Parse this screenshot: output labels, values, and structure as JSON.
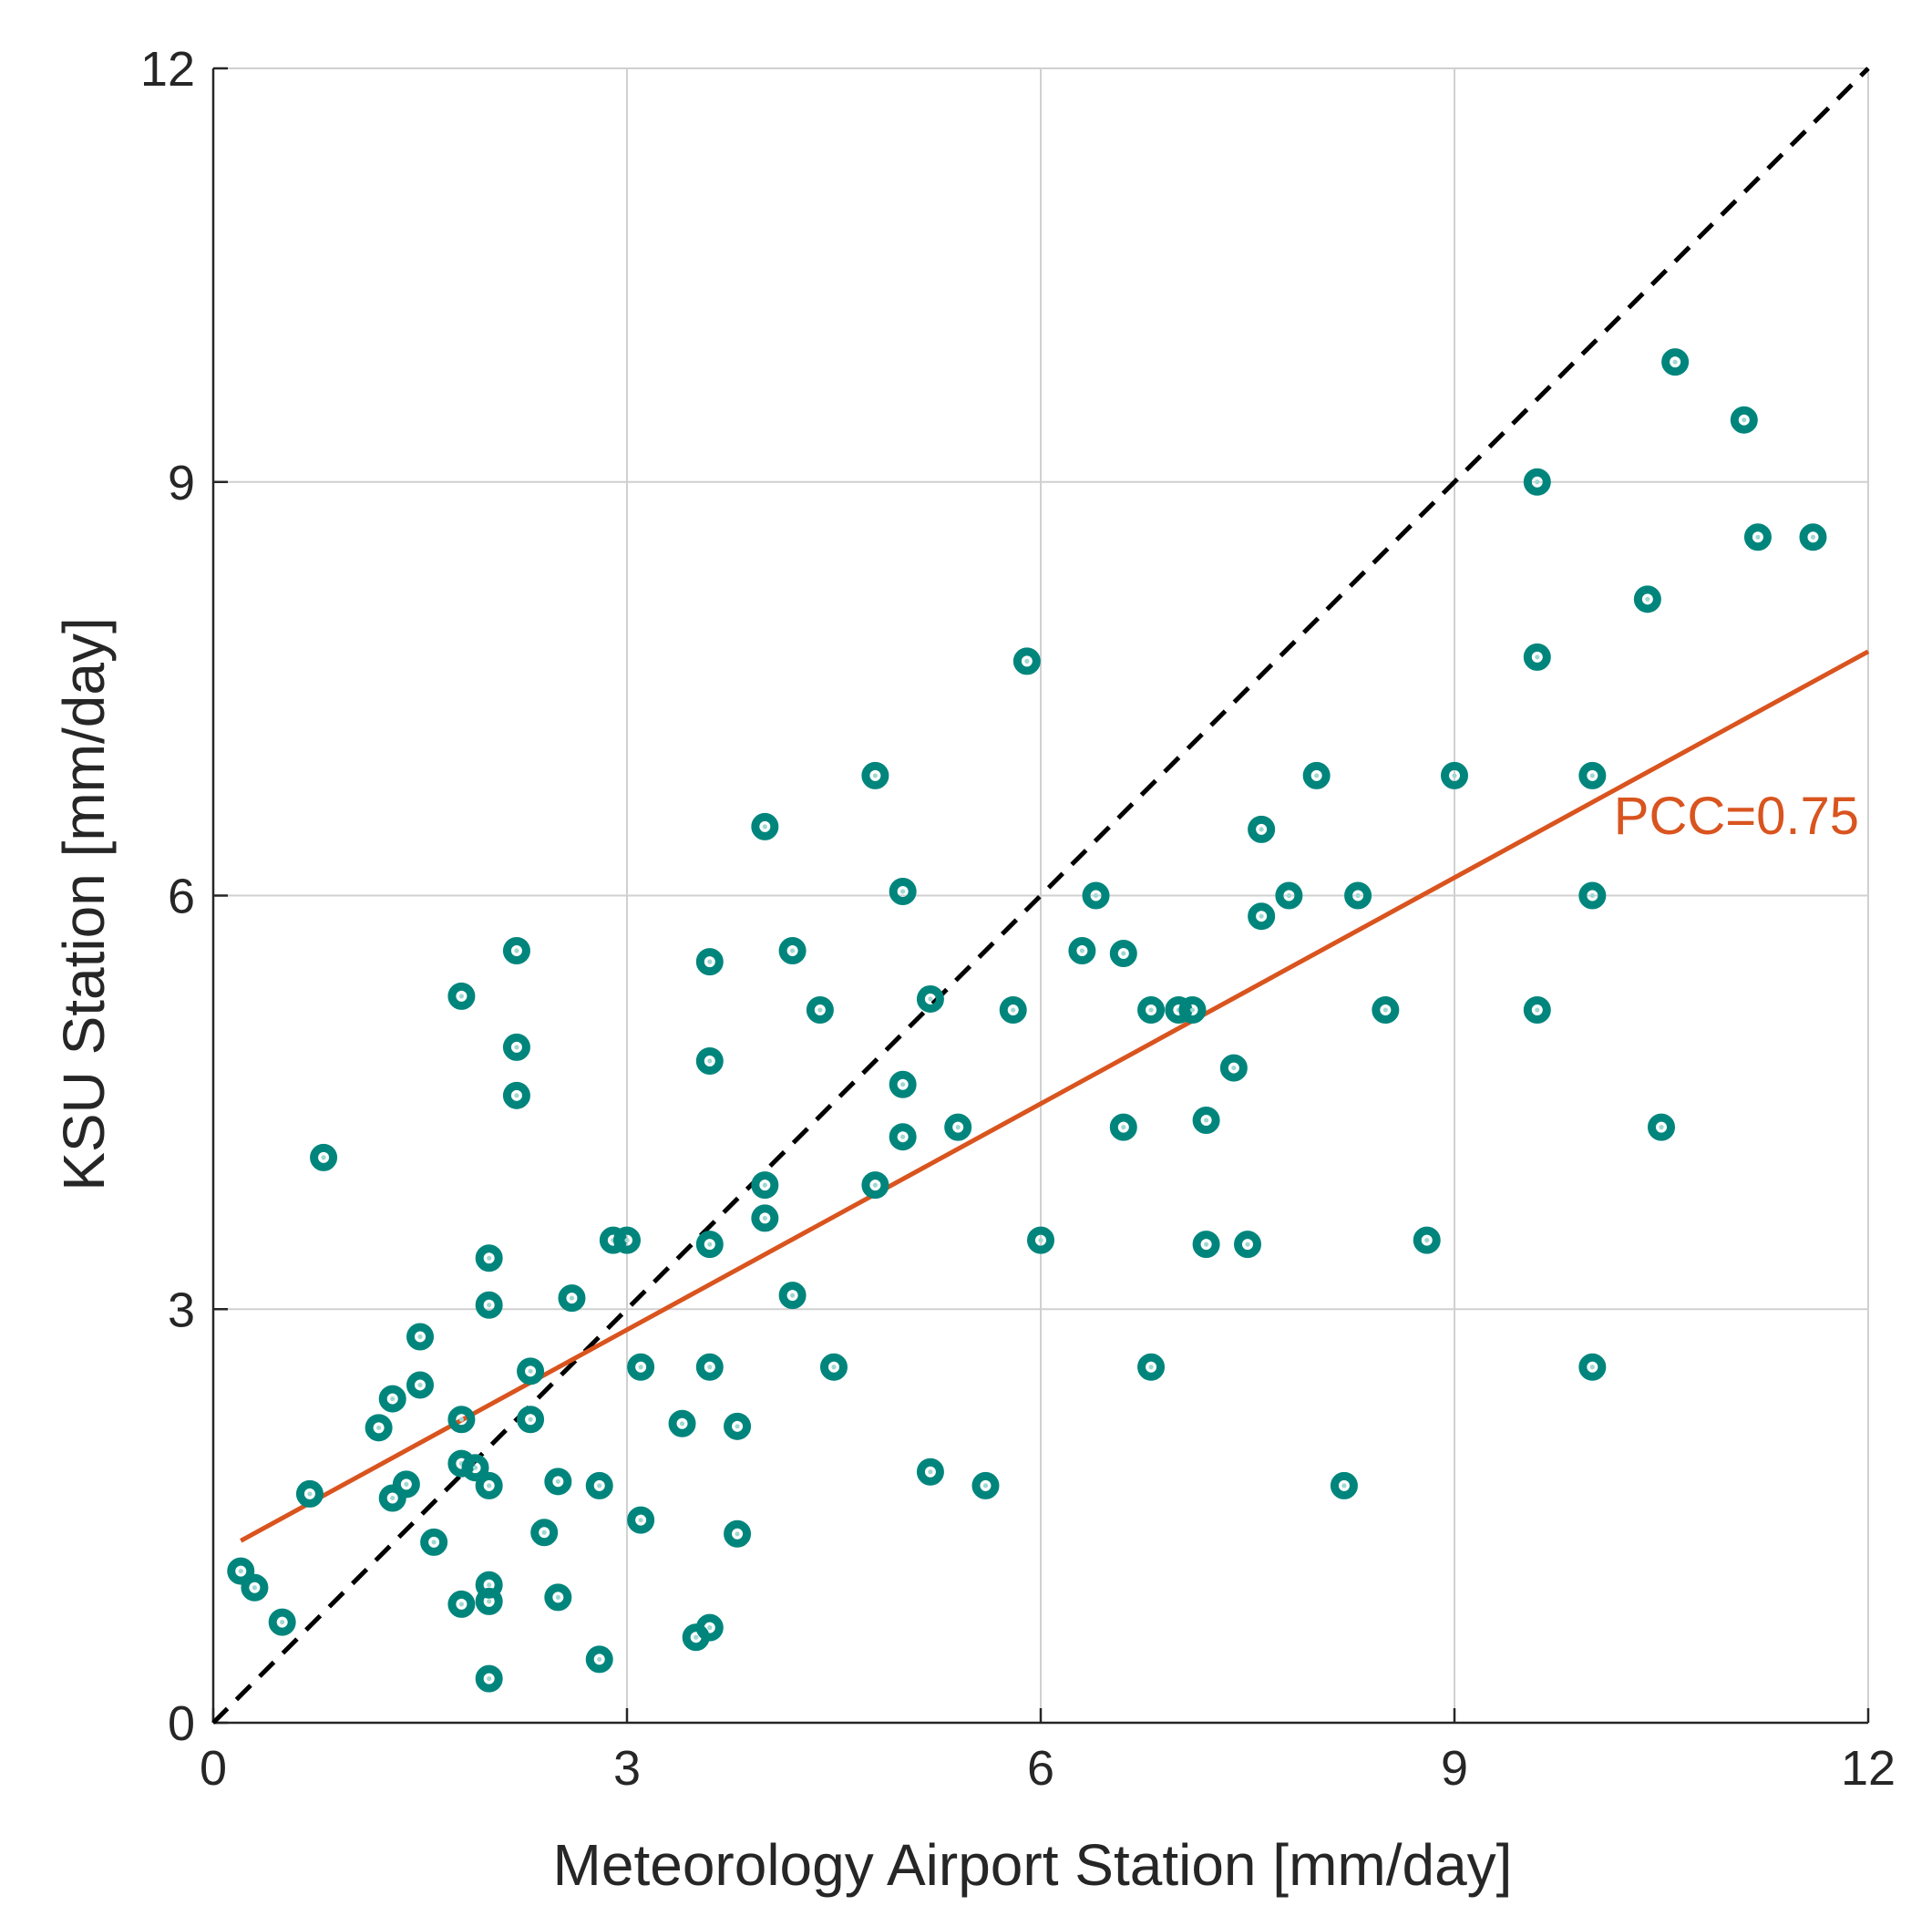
{
  "chart_data": {
    "type": "scatter",
    "xlabel": "Meteorology Airport Station [mm/day]",
    "ylabel": "KSU Station [mm/day]",
    "xlim": [
      0,
      12
    ],
    "ylim": [
      0,
      12
    ],
    "xticks": [
      "0",
      "3",
      "6",
      "9",
      "12"
    ],
    "yticks": [
      "0",
      "3",
      "6",
      "9",
      "12"
    ],
    "grid": true,
    "colors": {
      "points": "#00857C",
      "fit": "#D9541E",
      "identity": "#000000",
      "grid": "#D0D0D0",
      "axis": "#262626"
    },
    "annotation": {
      "text": "PCC=0.75"
    },
    "identity_line": {
      "x": [
        0,
        12
      ],
      "y": [
        0,
        12
      ]
    },
    "fit_line": {
      "x": [
        0.2,
        12
      ],
      "y": [
        1.32,
        7.77
      ]
    },
    "series": [
      {
        "name": "observations",
        "points": [
          [
            0.2,
            1.1
          ],
          [
            0.3,
            0.98
          ],
          [
            0.5,
            0.73
          ],
          [
            0.7,
            1.66
          ],
          [
            0.8,
            4.1
          ],
          [
            1.2,
            2.14
          ],
          [
            1.3,
            2.35
          ],
          [
            1.3,
            1.63
          ],
          [
            1.4,
            1.73
          ],
          [
            1.5,
            2.8
          ],
          [
            1.5,
            2.45
          ],
          [
            1.6,
            1.31
          ],
          [
            1.8,
            5.27
          ],
          [
            1.8,
            2.2
          ],
          [
            1.8,
            1.88
          ],
          [
            1.8,
            0.86
          ],
          [
            1.9,
            1.85
          ],
          [
            2.0,
            3.37
          ],
          [
            2.0,
            3.03
          ],
          [
            2.0,
            1.72
          ],
          [
            2.0,
            1.0
          ],
          [
            2.0,
            0.88
          ],
          [
            2.0,
            0.32
          ],
          [
            2.2,
            5.6
          ],
          [
            2.2,
            4.9
          ],
          [
            2.2,
            4.55
          ],
          [
            2.3,
            2.55
          ],
          [
            2.3,
            2.2
          ],
          [
            2.4,
            1.38
          ],
          [
            2.5,
            1.75
          ],
          [
            2.5,
            0.91
          ],
          [
            2.6,
            3.08
          ],
          [
            2.8,
            1.72
          ],
          [
            2.8,
            0.46
          ],
          [
            2.9,
            3.5
          ],
          [
            3.0,
            3.5
          ],
          [
            3.1,
            2.58
          ],
          [
            3.1,
            1.47
          ],
          [
            3.4,
            2.17
          ],
          [
            3.5,
            0.62
          ],
          [
            3.6,
            5.52
          ],
          [
            3.6,
            4.8
          ],
          [
            3.6,
            3.47
          ],
          [
            3.6,
            2.58
          ],
          [
            3.6,
            0.69
          ],
          [
            3.8,
            2.15
          ],
          [
            3.8,
            1.37
          ],
          [
            4.0,
            6.5
          ],
          [
            4.0,
            3.9
          ],
          [
            4.0,
            3.66
          ],
          [
            4.2,
            5.6
          ],
          [
            4.2,
            3.1
          ],
          [
            4.4,
            5.17
          ],
          [
            4.5,
            2.58
          ],
          [
            4.8,
            6.87
          ],
          [
            4.8,
            3.9
          ],
          [
            5.0,
            6.03
          ],
          [
            5.0,
            4.63
          ],
          [
            5.0,
            4.25
          ],
          [
            5.2,
            5.25
          ],
          [
            5.2,
            1.82
          ],
          [
            5.4,
            4.32
          ],
          [
            5.6,
            1.72
          ],
          [
            5.8,
            5.17
          ],
          [
            5.9,
            7.7
          ],
          [
            6.0,
            3.5
          ],
          [
            6.3,
            5.6
          ],
          [
            6.4,
            6.0
          ],
          [
            6.6,
            5.58
          ],
          [
            6.6,
            4.32
          ],
          [
            6.8,
            5.17
          ],
          [
            6.8,
            2.58
          ],
          [
            7.0,
            5.17
          ],
          [
            7.1,
            5.17
          ],
          [
            7.2,
            4.37
          ],
          [
            7.2,
            3.47
          ],
          [
            7.4,
            4.75
          ],
          [
            7.5,
            3.47
          ],
          [
            7.6,
            6.48
          ],
          [
            7.6,
            5.85
          ],
          [
            7.8,
            6.0
          ],
          [
            8.0,
            6.87
          ],
          [
            8.2,
            1.72
          ],
          [
            8.3,
            6.0
          ],
          [
            8.5,
            5.17
          ],
          [
            8.8,
            3.5
          ],
          [
            9.0,
            6.87
          ],
          [
            9.6,
            9.0
          ],
          [
            9.6,
            7.73
          ],
          [
            9.6,
            5.17
          ],
          [
            10.0,
            6.87
          ],
          [
            10.0,
            6.0
          ],
          [
            10.0,
            2.58
          ],
          [
            10.4,
            8.15
          ],
          [
            10.5,
            4.32
          ],
          [
            10.6,
            9.87
          ],
          [
            11.1,
            9.45
          ],
          [
            11.2,
            8.6
          ],
          [
            11.6,
            8.6
          ]
        ]
      }
    ]
  }
}
